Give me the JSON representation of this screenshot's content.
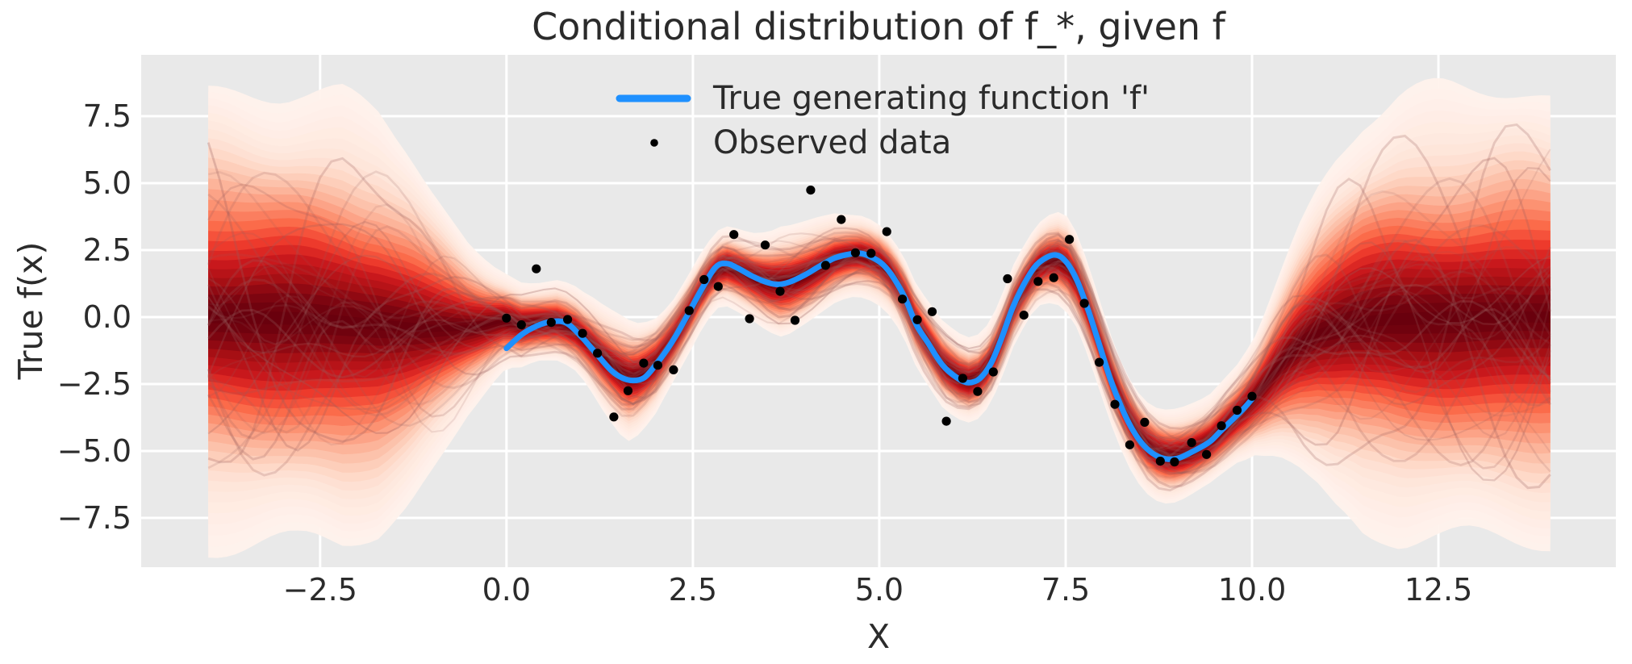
{
  "chart": {
    "title": "Conditional distribution of f_*, given f",
    "xlabel": "X",
    "ylabel": "True f(x)"
  },
  "legend": {
    "items": [
      {
        "label": "True generating function 'f'",
        "marker": "line",
        "color": "#1E90FF"
      },
      {
        "label": "Observed data",
        "marker": "dot",
        "color": "#000000"
      }
    ]
  },
  "chart_data": {
    "type": "line",
    "subtype": "gaussian-process-posterior-density",
    "title": "Conditional distribution of f_*, given f",
    "xlabel": "X",
    "ylabel": "True f(x)",
    "xlim": [
      -4.9,
      14.88
    ],
    "ylim": [
      -9.34,
      9.79
    ],
    "xticks": [
      -2.5,
      0.0,
      2.5,
      5.0,
      7.5,
      10.0,
      12.5
    ],
    "yticks": [
      7.5,
      5.0,
      2.5,
      0.0,
      -2.5,
      -5.0,
      -7.5
    ],
    "grid": true,
    "legend_position": "upper center",
    "axes_background": "#e9e9e9",
    "grid_color": "#ffffff",
    "series": [
      {
        "name": "True generating function 'f'",
        "color": "#1E90FF",
        "line_width": 7,
        "points": [
          [
            0.0,
            -1.17
          ],
          [
            0.2,
            -0.66
          ],
          [
            0.4,
            -0.34
          ],
          [
            0.6,
            -0.17
          ],
          [
            0.8,
            -0.22
          ],
          [
            1.0,
            -0.72
          ],
          [
            1.2,
            -1.35
          ],
          [
            1.4,
            -1.98
          ],
          [
            1.55,
            -2.27
          ],
          [
            1.7,
            -2.37
          ],
          [
            1.85,
            -2.26
          ],
          [
            2.0,
            -1.79
          ],
          [
            2.2,
            -1.02
          ],
          [
            2.4,
            -0.07
          ],
          [
            2.6,
            0.95
          ],
          [
            2.8,
            1.85
          ],
          [
            2.95,
            2.0
          ],
          [
            3.1,
            1.83
          ],
          [
            3.3,
            1.52
          ],
          [
            3.5,
            1.29
          ],
          [
            3.65,
            1.22
          ],
          [
            3.8,
            1.31
          ],
          [
            4.0,
            1.57
          ],
          [
            4.2,
            1.9
          ],
          [
            4.4,
            2.2
          ],
          [
            4.6,
            2.35
          ],
          [
            4.75,
            2.38
          ],
          [
            4.9,
            2.23
          ],
          [
            5.05,
            1.96
          ],
          [
            5.2,
            1.43
          ],
          [
            5.35,
            0.68
          ],
          [
            5.5,
            -0.3
          ],
          [
            5.65,
            -0.95
          ],
          [
            5.85,
            -1.8
          ],
          [
            6.05,
            -2.28
          ],
          [
            6.2,
            -2.45
          ],
          [
            6.35,
            -2.29
          ],
          [
            6.5,
            -1.72
          ],
          [
            6.65,
            -0.72
          ],
          [
            6.8,
            0.42
          ],
          [
            7.0,
            1.52
          ],
          [
            7.15,
            2.05
          ],
          [
            7.35,
            2.32
          ],
          [
            7.5,
            2.08
          ],
          [
            7.65,
            1.38
          ],
          [
            7.8,
            0.28
          ],
          [
            7.95,
            -1.02
          ],
          [
            8.1,
            -2.32
          ],
          [
            8.25,
            -3.38
          ],
          [
            8.4,
            -4.22
          ],
          [
            8.55,
            -4.8
          ],
          [
            8.7,
            -5.15
          ],
          [
            8.85,
            -5.3
          ],
          [
            9.0,
            -5.28
          ],
          [
            9.15,
            -5.1
          ],
          [
            9.3,
            -4.88
          ],
          [
            9.45,
            -4.62
          ],
          [
            9.6,
            -4.2
          ],
          [
            9.75,
            -3.8
          ],
          [
            9.9,
            -3.38
          ],
          [
            10.0,
            -3.06
          ]
        ]
      },
      {
        "name": "Observed data",
        "color": "#000000",
        "marker": "circle",
        "marker_radius": 5.6,
        "points": [
          [
            0.0,
            -0.04
          ],
          [
            0.2,
            -0.29
          ],
          [
            0.4,
            1.8
          ],
          [
            0.6,
            -0.2
          ],
          [
            0.82,
            -0.09
          ],
          [
            1.02,
            -0.61
          ],
          [
            1.22,
            -1.35
          ],
          [
            1.44,
            -3.73
          ],
          [
            1.63,
            -2.75
          ],
          [
            1.84,
            -1.72
          ],
          [
            2.03,
            -1.8
          ],
          [
            2.24,
            -1.97
          ],
          [
            2.45,
            0.24
          ],
          [
            2.65,
            1.4
          ],
          [
            2.84,
            1.14
          ],
          [
            3.05,
            3.08
          ],
          [
            3.26,
            -0.06
          ],
          [
            3.47,
            2.69
          ],
          [
            3.67,
            0.96
          ],
          [
            3.87,
            -0.12
          ],
          [
            4.08,
            4.74
          ],
          [
            4.28,
            1.93
          ],
          [
            4.49,
            3.64
          ],
          [
            4.68,
            2.4
          ],
          [
            4.89,
            2.38
          ],
          [
            5.1,
            3.19
          ],
          [
            5.31,
            0.67
          ],
          [
            5.51,
            -0.1
          ],
          [
            5.71,
            0.2
          ],
          [
            5.9,
            -3.89
          ],
          [
            6.12,
            -2.29
          ],
          [
            6.32,
            -2.78
          ],
          [
            6.53,
            -2.05
          ],
          [
            6.72,
            1.43
          ],
          [
            6.94,
            0.07
          ],
          [
            7.13,
            1.33
          ],
          [
            7.34,
            1.47
          ],
          [
            7.55,
            2.9
          ],
          [
            7.75,
            0.51
          ],
          [
            7.95,
            -1.69
          ],
          [
            8.16,
            -3.26
          ],
          [
            8.36,
            -4.77
          ],
          [
            8.56,
            -3.93
          ],
          [
            8.77,
            -5.38
          ],
          [
            8.96,
            -5.41
          ],
          [
            9.19,
            -4.69
          ],
          [
            9.39,
            -5.13
          ],
          [
            9.59,
            -4.06
          ],
          [
            9.8,
            -3.48
          ],
          [
            10.0,
            -2.96
          ]
        ]
      }
    ],
    "density": {
      "name": "Conditional density of f_* (Reds colormap, dark = high density)",
      "x_range": [
        -4.0,
        14.0
      ],
      "colormap_stops": [
        "#fff5f0",
        "#fee0d2",
        "#fcbba1",
        "#fc9272",
        "#fb6a4a",
        "#ef3b2c",
        "#cb181d",
        "#a50f15",
        "#67000d"
      ],
      "band_count": 26,
      "k_max": 3.0,
      "mean": [
        [
          -4.0,
          0.0
        ],
        [
          -3.2,
          -0.02
        ],
        [
          -2.6,
          -0.08
        ],
        [
          -2.2,
          -0.18
        ],
        [
          -1.8,
          -0.28
        ],
        [
          -1.4,
          -0.36
        ],
        [
          -1.0,
          -0.42
        ],
        [
          -0.7,
          -0.42
        ],
        [
          -0.45,
          -0.38
        ],
        [
          -0.25,
          -0.28
        ],
        [
          -0.1,
          -0.18
        ],
        [
          0.0,
          -0.12
        ],
        [
          0.2,
          -0.3
        ],
        [
          0.45,
          -0.22
        ],
        [
          0.7,
          -0.2
        ],
        [
          0.9,
          -0.45
        ],
        [
          1.1,
          -0.95
        ],
        [
          1.3,
          -1.55
        ],
        [
          1.5,
          -2.05
        ],
        [
          1.65,
          -2.3
        ],
        [
          1.8,
          -2.2
        ],
        [
          2.0,
          -1.75
        ],
        [
          2.2,
          -1.0
        ],
        [
          2.4,
          -0.1
        ],
        [
          2.6,
          0.9
        ],
        [
          2.8,
          1.75
        ],
        [
          2.95,
          1.9
        ],
        [
          3.1,
          1.75
        ],
        [
          3.3,
          1.5
        ],
        [
          3.5,
          1.3
        ],
        [
          3.65,
          1.25
        ],
        [
          3.8,
          1.32
        ],
        [
          4.0,
          1.55
        ],
        [
          4.2,
          1.85
        ],
        [
          4.4,
          2.15
        ],
        [
          4.6,
          2.3
        ],
        [
          4.75,
          2.32
        ],
        [
          4.9,
          2.2
        ],
        [
          5.05,
          1.95
        ],
        [
          5.2,
          1.45
        ],
        [
          5.35,
          0.7
        ],
        [
          5.5,
          -0.3
        ],
        [
          5.65,
          -0.95
        ],
        [
          5.85,
          -1.8
        ],
        [
          6.05,
          -2.25
        ],
        [
          6.2,
          -2.4
        ],
        [
          6.35,
          -2.25
        ],
        [
          6.5,
          -1.7
        ],
        [
          6.65,
          -0.7
        ],
        [
          6.8,
          0.4
        ],
        [
          7.0,
          1.45
        ],
        [
          7.15,
          1.95
        ],
        [
          7.35,
          2.2
        ],
        [
          7.5,
          2.0
        ],
        [
          7.65,
          1.35
        ],
        [
          7.8,
          0.3
        ],
        [
          7.95,
          -0.95
        ],
        [
          8.1,
          -2.2
        ],
        [
          8.25,
          -3.25
        ],
        [
          8.4,
          -4.1
        ],
        [
          8.55,
          -4.7
        ],
        [
          8.7,
          -5.05
        ],
        [
          8.85,
          -5.2
        ],
        [
          9.0,
          -5.2
        ],
        [
          9.15,
          -5.05
        ],
        [
          9.3,
          -4.85
        ],
        [
          9.45,
          -4.6
        ],
        [
          9.6,
          -4.2
        ],
        [
          9.75,
          -3.8
        ],
        [
          9.9,
          -3.4
        ],
        [
          10.0,
          -3.1
        ],
        [
          10.15,
          -2.6
        ],
        [
          10.35,
          -1.85
        ],
        [
          10.6,
          -1.1
        ],
        [
          10.9,
          -0.58
        ],
        [
          11.3,
          -0.25
        ],
        [
          11.8,
          -0.1
        ],
        [
          12.4,
          -0.03
        ],
        [
          13.2,
          0.0
        ],
        [
          14.0,
          0.0
        ]
      ],
      "std": [
        [
          -4.0,
          2.85
        ],
        [
          -2.8,
          2.85
        ],
        [
          -2.2,
          2.78
        ],
        [
          -1.7,
          2.55
        ],
        [
          -1.3,
          2.15
        ],
        [
          -0.9,
          1.6
        ],
        [
          -0.5,
          1.05
        ],
        [
          -0.2,
          0.75
        ],
        [
          0.0,
          0.6
        ],
        [
          0.4,
          0.5
        ],
        [
          1.0,
          0.52
        ],
        [
          1.6,
          0.75
        ],
        [
          2.2,
          0.52
        ],
        [
          2.8,
          0.48
        ],
        [
          3.3,
          0.55
        ],
        [
          3.7,
          0.7
        ],
        [
          4.1,
          0.62
        ],
        [
          4.6,
          0.5
        ],
        [
          5.2,
          0.5
        ],
        [
          5.9,
          0.55
        ],
        [
          6.5,
          0.52
        ],
        [
          7.1,
          0.5
        ],
        [
          7.5,
          0.6
        ],
        [
          8.2,
          0.55
        ],
        [
          8.9,
          0.58
        ],
        [
          9.4,
          0.55
        ],
        [
          9.8,
          0.62
        ],
        [
          10.05,
          0.75
        ],
        [
          10.35,
          1.1
        ],
        [
          10.7,
          1.6
        ],
        [
          11.1,
          2.15
        ],
        [
          11.5,
          2.55
        ],
        [
          12.0,
          2.75
        ],
        [
          12.6,
          2.8
        ],
        [
          14.0,
          2.8
        ]
      ],
      "samples_visible": 30,
      "sample_color": "#965c5c"
    }
  }
}
